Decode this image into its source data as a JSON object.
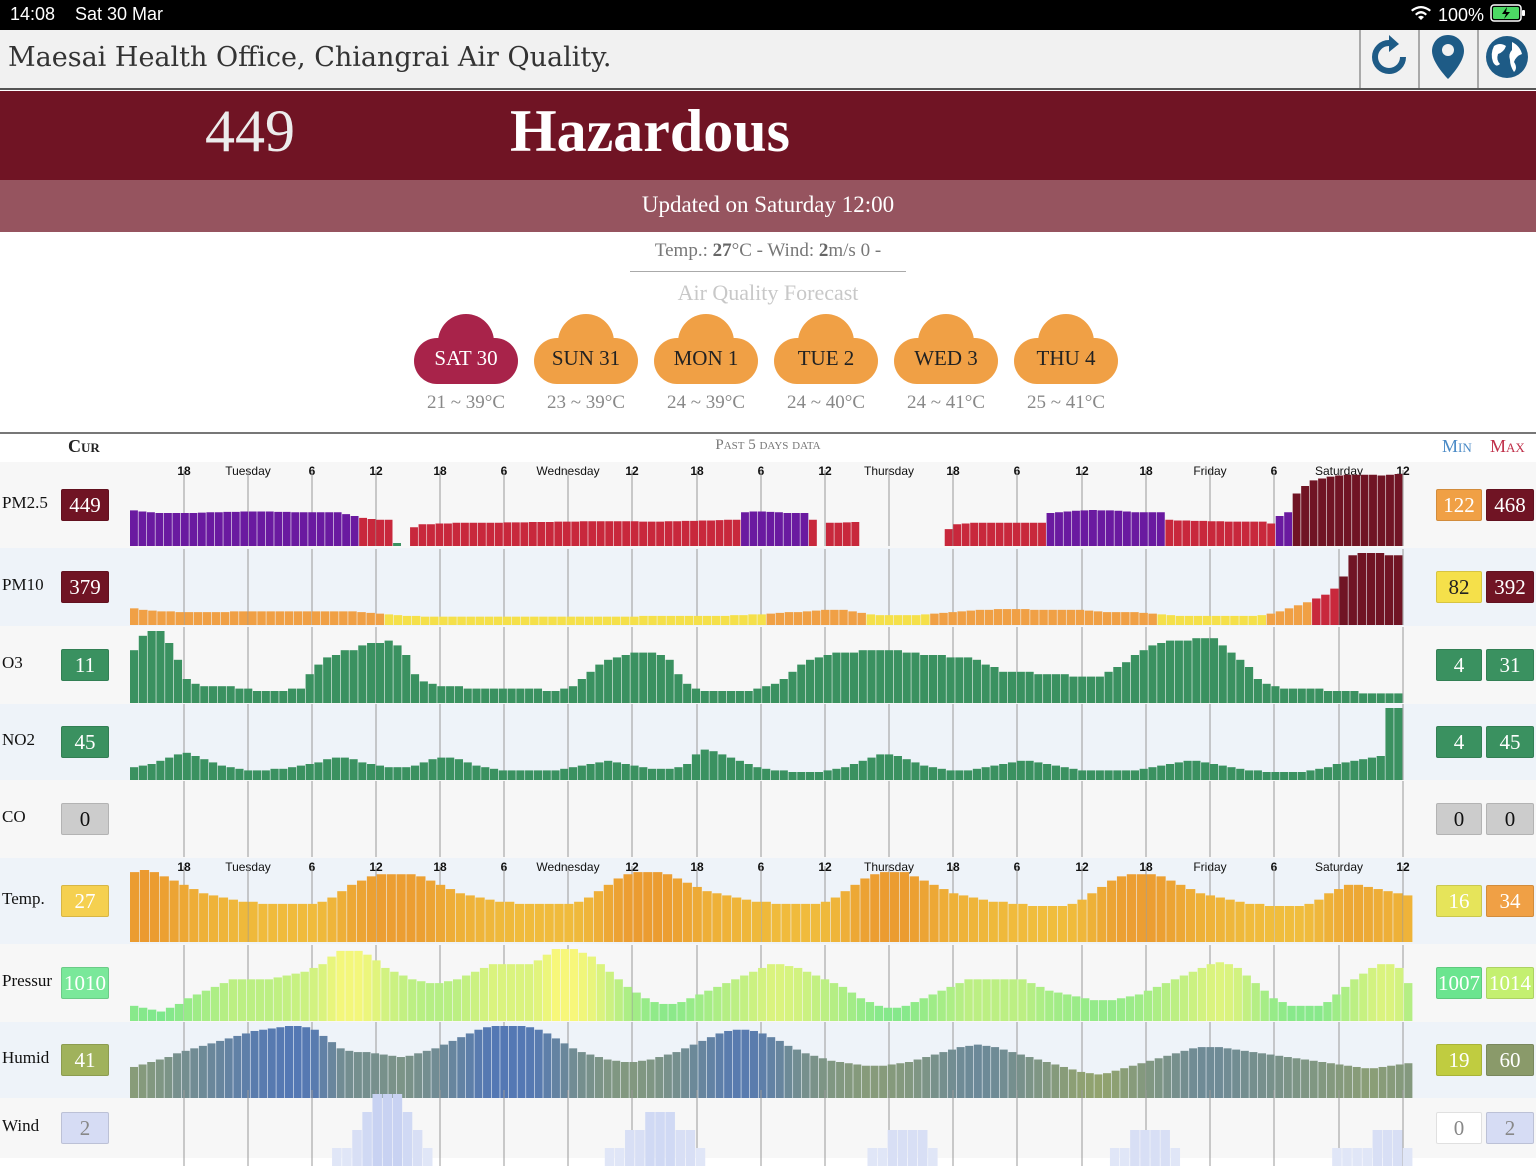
{
  "status_bar": {
    "time": "14:08",
    "date": "Sat 30 Mar",
    "battery": "100%"
  },
  "header": {
    "title": "Maesai Health Office, Chiangrai Air Quality.",
    "buttons": [
      "refresh-icon",
      "location-pin-icon",
      "globe-icon"
    ]
  },
  "aqi": {
    "value": "449",
    "level": "Hazardous",
    "color": "#701424"
  },
  "updated": "Updated on Saturday 12:00",
  "weather": {
    "temp_label": "Temp.: ",
    "temp_value": "27",
    "temp_unit": "°C - Wind: ",
    "wind_value": "2",
    "wind_unit": "m/s 0 -"
  },
  "forecast": {
    "title": "Air Quality Forecast",
    "days": [
      {
        "label": "SAT 30",
        "range": "21 ~ 39°C",
        "color": "#a8234a",
        "text_color": "#ffffff"
      },
      {
        "label": "SUN 31",
        "range": "23 ~ 39°C",
        "color": "#f0a045",
        "text_color": "#222222"
      },
      {
        "label": "MON 1",
        "range": "24 ~ 39°C",
        "color": "#f0a045",
        "text_color": "#222222"
      },
      {
        "label": "TUE 2",
        "range": "24 ~ 40°C",
        "color": "#f0a045",
        "text_color": "#222222"
      },
      {
        "label": "WED 3",
        "range": "24 ~ 41°C",
        "color": "#f0a045",
        "text_color": "#222222"
      },
      {
        "label": "THU 4",
        "range": "25 ~ 41°C",
        "color": "#f0a045",
        "text_color": "#222222"
      }
    ]
  },
  "table": {
    "cur_label": "Cur",
    "past_label": "Past 5 days data",
    "min_label": "Min",
    "max_label": "Max",
    "hour_ticks": [
      "18",
      "6",
      "12",
      "18",
      "6",
      "12",
      "18",
      "6",
      "12",
      "18",
      "6",
      "12",
      "18",
      "6",
      "12"
    ],
    "day_ticks": [
      "Tuesday",
      "Wednesday",
      "Thursday",
      "Friday",
      "Saturday"
    ],
    "rows": [
      {
        "label": "PM2.5",
        "cur": "449",
        "cur_color": "#701424",
        "cur_text": "#ffffff",
        "min": "122",
        "min_color": "#f0a045",
        "min_text": "#ffffff",
        "max": "468",
        "max_color": "#701424",
        "max_text": "#ffffff",
        "series": "pm25",
        "bg": "#f7f7f7"
      },
      {
        "label": "PM10",
        "cur": "379",
        "cur_color": "#701424",
        "cur_text": "#ffffff",
        "min": "82",
        "min_color": "#f5e04a",
        "min_text": "#222222",
        "max": "392",
        "max_color": "#701424",
        "max_text": "#ffffff",
        "series": "pm10",
        "bg": "#eef3f9"
      },
      {
        "label": "O3",
        "cur": "11",
        "cur_color": "#3a9160",
        "cur_text": "#ffffff",
        "min": "4",
        "min_color": "#3a9160",
        "min_text": "#ffffff",
        "max": "31",
        "max_color": "#3a9160",
        "max_text": "#ffffff",
        "series": "o3",
        "bg": "#f7f7f7"
      },
      {
        "label": "NO2",
        "cur": "45",
        "cur_color": "#3a9160",
        "cur_text": "#ffffff",
        "min": "4",
        "min_color": "#3a9160",
        "min_text": "#ffffff",
        "max": "45",
        "max_color": "#3a9160",
        "max_text": "#ffffff",
        "series": "no2",
        "bg": "#eef3f9"
      },
      {
        "label": "CO",
        "cur": "0",
        "cur_color": "#cccccc",
        "cur_text": "#111111",
        "min": "0",
        "min_color": "#cccccc",
        "min_text": "#111111",
        "max": "0",
        "max_color": "#cccccc",
        "max_text": "#111111",
        "series": "co",
        "bg": "#f7f7f7"
      },
      {
        "label": "Temp.",
        "cur": "27",
        "cur_color": "#f5d050",
        "cur_text": "#ffffff",
        "min": "16",
        "min_color": "#e6e45a",
        "min_text": "#ffffff",
        "max": "34",
        "max_color": "#f0a045",
        "max_text": "#ffffff",
        "series": "temp",
        "bg": "#eef3f9"
      },
      {
        "label": "Pressur",
        "cur": "1010",
        "cur_color": "#7ae89a",
        "cur_text": "#ffffff",
        "min": "1007",
        "min_color": "#6be58f",
        "min_text": "#ffffff",
        "max": "1014",
        "max_color": "#c4f070",
        "max_text": "#ffffff",
        "series": "pressure",
        "bg": "#f7f7f7"
      },
      {
        "label": "Humid",
        "cur": "41",
        "cur_color": "#a0b25c",
        "cur_text": "#ffffff",
        "min": "19",
        "min_color": "#c0cc40",
        "min_text": "#ffffff",
        "max": "60",
        "max_color": "#8a9a6a",
        "max_text": "#ffffff",
        "series": "humid",
        "bg": "#eef3f9"
      },
      {
        "label": "Wind",
        "cur": "2",
        "cur_color": "#d6dcf4",
        "cur_text": "#888888",
        "min": "0",
        "min_color": "#ffffff",
        "min_text": "#888888",
        "max": "2",
        "max_color": "#d6dcf4",
        "max_text": "#888888",
        "series": "wind",
        "bg": "#f7f7f7"
      }
    ]
  },
  "chart_data": [
    {
      "type": "bar",
      "name": "PM2.5",
      "values": [
        95,
        92,
        90,
        88,
        88,
        88,
        88,
        88,
        89,
        90,
        90,
        91,
        91,
        92,
        92,
        92,
        92,
        91,
        91,
        90,
        90,
        90,
        90,
        90,
        90,
        85,
        80,
        75,
        72,
        70,
        70,
        8,
        0,
        50,
        58,
        58,
        60,
        60,
        62,
        62,
        62,
        62,
        62,
        62,
        63,
        63,
        63,
        64,
        64,
        64,
        65,
        65,
        65,
        66,
        66,
        66,
        66,
        66,
        66,
        66,
        65,
        65,
        65,
        66,
        66,
        67,
        67,
        68,
        68,
        69,
        70,
        70,
        90,
        92,
        92,
        91,
        90,
        88,
        88,
        88,
        70,
        0,
        62,
        62,
        63,
        64,
        0,
        0,
        0,
        0,
        0,
        0,
        0,
        0,
        0,
        0,
        45,
        58,
        60,
        62,
        62,
        62,
        62,
        62,
        62,
        62,
        62,
        62,
        88,
        90,
        92,
        94,
        95,
        96,
        95,
        95,
        94,
        92,
        90,
        90,
        90,
        90,
        70,
        68,
        68,
        67,
        67,
        66,
        66,
        65,
        65,
        65,
        65,
        65,
        60,
        80,
        90,
        140,
        160,
        175,
        180,
        185,
        188,
        190,
        190,
        190,
        190,
        188,
        190,
        192
      ],
      "colors_note": "purple=very unhealthy, red=unhealthy, dark red=hazardous"
    },
    {
      "type": "bar",
      "name": "PM10",
      "values": [
        22,
        20,
        19,
        18,
        18,
        17,
        17,
        17,
        17,
        17,
        17,
        18,
        18,
        18,
        18,
        18,
        18,
        18,
        18,
        18,
        18,
        18,
        18,
        18,
        18,
        17,
        16,
        15,
        14,
        13,
        12,
        12,
        11,
        11,
        11,
        11,
        11,
        11,
        11,
        11,
        11,
        11,
        11,
        11,
        11,
        11,
        11,
        11,
        11,
        11,
        11,
        11,
        11,
        11,
        11,
        11,
        12,
        12,
        12,
        12,
        12,
        12,
        12,
        12,
        12,
        12,
        13,
        13,
        14,
        14,
        15,
        16,
        17,
        17,
        18,
        19,
        20,
        20,
        20,
        18,
        16,
        14,
        13,
        13,
        13,
        13,
        13,
        14,
        15,
        16,
        17,
        18,
        19,
        20,
        20,
        21,
        21,
        21,
        21,
        20,
        20,
        20,
        20,
        20,
        20,
        19,
        18,
        17,
        17,
        17,
        17,
        16,
        15,
        14,
        13,
        12,
        12,
        12,
        12,
        12,
        12,
        12,
        12,
        12,
        13,
        15,
        18,
        22,
        26,
        30,
        35,
        40,
        48,
        64,
        92,
        95,
        95,
        95,
        92,
        92
      ],
      "colors_note": "orange/yellow/red/purple/dark red bars"
    },
    {
      "type": "bar",
      "name": "O3",
      "values": [
        22,
        28,
        30,
        30,
        25,
        18,
        10,
        8,
        7,
        7,
        7,
        7,
        6,
        6,
        5,
        5,
        5,
        5,
        6,
        6,
        12,
        16,
        19,
        20,
        22,
        22,
        24,
        25,
        25,
        26,
        24,
        20,
        12,
        9,
        8,
        7,
        7,
        7,
        6,
        6,
        6,
        6,
        6,
        6,
        6,
        6,
        6,
        5,
        5,
        6,
        7,
        10,
        13,
        16,
        18,
        19,
        20,
        21,
        21,
        21,
        20,
        18,
        12,
        8,
        6,
        5,
        5,
        5,
        5,
        5,
        5,
        6,
        7,
        8,
        10,
        13,
        16,
        18,
        19,
        20,
        21,
        21,
        21,
        22,
        22,
        22,
        22,
        22,
        21,
        21,
        20,
        20,
        20,
        19,
        19,
        19,
        18,
        16,
        15,
        13,
        13,
        13,
        13,
        12,
        12,
        12,
        12,
        11,
        11,
        11,
        11,
        13,
        15,
        17,
        20,
        22,
        24,
        25,
        26,
        26,
        26,
        27,
        27,
        27,
        24,
        21,
        18,
        15,
        10,
        8,
        7,
        6,
        6,
        6,
        6,
        6,
        5,
        5,
        5,
        5,
        4,
        4,
        4,
        4,
        4
      ],
      "colors_note": "green bars"
    },
    {
      "type": "bar",
      "name": "NO2",
      "values": [
        8,
        9,
        10,
        12,
        14,
        16,
        17,
        15,
        13,
        11,
        9,
        8,
        7,
        6,
        6,
        6,
        7,
        7,
        8,
        9,
        10,
        11,
        13,
        14,
        14,
        13,
        11,
        10,
        9,
        8,
        8,
        8,
        9,
        11,
        13,
        14,
        14,
        13,
        11,
        9,
        8,
        7,
        6,
        6,
        6,
        6,
        6,
        6,
        6,
        7,
        8,
        9,
        10,
        11,
        12,
        11,
        10,
        9,
        8,
        7,
        7,
        7,
        8,
        10,
        16,
        19,
        18,
        16,
        14,
        12,
        10,
        8,
        7,
        6,
        6,
        5,
        5,
        5,
        5,
        6,
        7,
        8,
        10,
        12,
        14,
        16,
        16,
        15,
        13,
        11,
        9,
        8,
        7,
        6,
        6,
        6,
        7,
        8,
        9,
        10,
        11,
        12,
        12,
        11,
        10,
        9,
        8,
        7,
        6,
        6,
        6,
        6,
        6,
        6,
        6,
        7,
        8,
        9,
        10,
        11,
        12,
        12,
        11,
        10,
        9,
        8,
        7,
        6,
        6,
        5,
        5,
        5,
        5,
        5,
        6,
        7,
        8,
        10,
        11,
        12,
        13,
        14,
        15,
        45,
        45
      ],
      "colors_note": "green bars"
    },
    {
      "type": "bar",
      "name": "CO",
      "values": []
    },
    {
      "type": "bar",
      "name": "Temp.",
      "values": [
        33,
        34,
        33,
        31,
        29,
        27,
        25,
        23,
        22,
        21,
        20,
        19,
        19,
        18,
        18,
        18,
        18,
        18,
        18,
        19,
        21,
        24,
        27,
        29,
        31,
        32,
        32,
        32,
        32,
        31,
        29,
        27,
        25,
        23,
        22,
        21,
        20,
        19,
        19,
        18,
        18,
        18,
        18,
        18,
        18,
        19,
        21,
        24,
        27,
        30,
        32,
        33,
        33,
        33,
        32,
        30,
        28,
        26,
        24,
        23,
        22,
        21,
        20,
        19,
        19,
        18,
        18,
        18,
        18,
        18,
        19,
        21,
        24,
        27,
        30,
        32,
        33,
        33,
        33,
        31,
        29,
        27,
        25,
        23,
        22,
        21,
        20,
        19,
        19,
        18,
        18,
        17,
        17,
        17,
        17,
        18,
        20,
        23,
        26,
        29,
        31,
        32,
        32,
        32,
        31,
        29,
        27,
        25,
        23,
        22,
        21,
        20,
        19,
        18,
        18,
        17,
        17,
        17,
        17,
        18,
        20,
        23,
        25,
        27,
        27,
        26,
        25,
        24,
        23,
        22
      ],
      "colors_note": "orange to yellow"
    },
    {
      "type": "bar",
      "name": "Pressure",
      "values": [
        8,
        7,
        6,
        5,
        7,
        9,
        12,
        14,
        16,
        18,
        20,
        22,
        22,
        22,
        22,
        22,
        23,
        24,
        25,
        26,
        28,
        30,
        34,
        37,
        37,
        37,
        35,
        32,
        28,
        26,
        24,
        22,
        21,
        20,
        20,
        21,
        22,
        24,
        26,
        28,
        30,
        30,
        30,
        30,
        30,
        32,
        35,
        38,
        38,
        38,
        36,
        34,
        30,
        26,
        22,
        18,
        15,
        12,
        10,
        9,
        9,
        10,
        12,
        14,
        16,
        18,
        20,
        22,
        24,
        26,
        28,
        30,
        30,
        29,
        28,
        26,
        24,
        22,
        20,
        18,
        15,
        12,
        10,
        8,
        7,
        7,
        8,
        10,
        12,
        14,
        16,
        18,
        20,
        22,
        22,
        22,
        22,
        22,
        22,
        22,
        20,
        18,
        16,
        15,
        14,
        13,
        12,
        11,
        11,
        11,
        12,
        13,
        14,
        16,
        18,
        20,
        22,
        24,
        26,
        28,
        30,
        31,
        30,
        28,
        24,
        20,
        16,
        12,
        10,
        8,
        8,
        8,
        8,
        10,
        14,
        18,
        22,
        25,
        28,
        30,
        30,
        28,
        20
      ],
      "colors_note": "green to yellow"
    },
    {
      "type": "bar",
      "name": "Humid",
      "values": [
        25,
        27,
        29,
        31,
        33,
        36,
        38,
        40,
        42,
        44,
        46,
        48,
        50,
        52,
        54,
        55,
        56,
        57,
        58,
        58,
        57,
        55,
        50,
        45,
        40,
        38,
        37,
        37,
        36,
        35,
        34,
        33,
        34,
        36,
        38,
        40,
        43,
        46,
        49,
        52,
        55,
        57,
        58,
        58,
        58,
        58,
        57,
        55,
        52,
        48,
        44,
        40,
        37,
        35,
        33,
        31,
        30,
        29,
        29,
        30,
        31,
        33,
        35,
        37,
        40,
        43,
        46,
        49,
        52,
        54,
        55,
        55,
        54,
        52,
        49,
        46,
        42,
        39,
        36,
        34,
        32,
        30,
        29,
        28,
        27,
        26,
        26,
        26,
        27,
        28,
        29,
        31,
        33,
        35,
        37,
        39,
        41,
        42,
        43,
        42,
        41,
        39,
        37,
        35,
        33,
        31,
        29,
        27,
        25,
        23,
        21,
        20,
        19,
        20,
        22,
        24,
        26,
        28,
        30,
        32,
        34,
        36,
        38,
        40,
        41,
        41,
        41,
        40,
        39,
        38,
        37,
        36,
        35,
        34,
        33,
        32,
        31,
        30,
        29,
        28,
        27,
        26,
        25,
        24,
        24,
        25,
        26,
        27,
        28
      ],
      "colors_note": "olive to blue"
    },
    {
      "type": "bar",
      "name": "Wind",
      "values": [
        0,
        0,
        0,
        0,
        0,
        0,
        0,
        0,
        0,
        0,
        0,
        0,
        0,
        0,
        0,
        0,
        0,
        0,
        0,
        0,
        1,
        1,
        2,
        3,
        4,
        4,
        4,
        3,
        2,
        1,
        0,
        0,
        0,
        0,
        0,
        0,
        0,
        0,
        0,
        0,
        0,
        0,
        0,
        0,
        0,
        0,
        0,
        1,
        1,
        2,
        2,
        3,
        3,
        3,
        2,
        2,
        1,
        0,
        0,
        0,
        0,
        0,
        0,
        0,
        0,
        0,
        0,
        0,
        0,
        0,
        0,
        0,
        0,
        1,
        1,
        2,
        2,
        2,
        2,
        1,
        0,
        0,
        0,
        0,
        0,
        0,
        0,
        0,
        0,
        0,
        0,
        0,
        0,
        0,
        0,
        0,
        0,
        1,
        1,
        2,
        2,
        2,
        2,
        1,
        0,
        0,
        0,
        0,
        0,
        0,
        0,
        0,
        0,
        0,
        0,
        0,
        0,
        0,
        0,
        1,
        1,
        1,
        1,
        2,
        2,
        2,
        1
      ],
      "colors_note": "light blue, faint"
    }
  ]
}
